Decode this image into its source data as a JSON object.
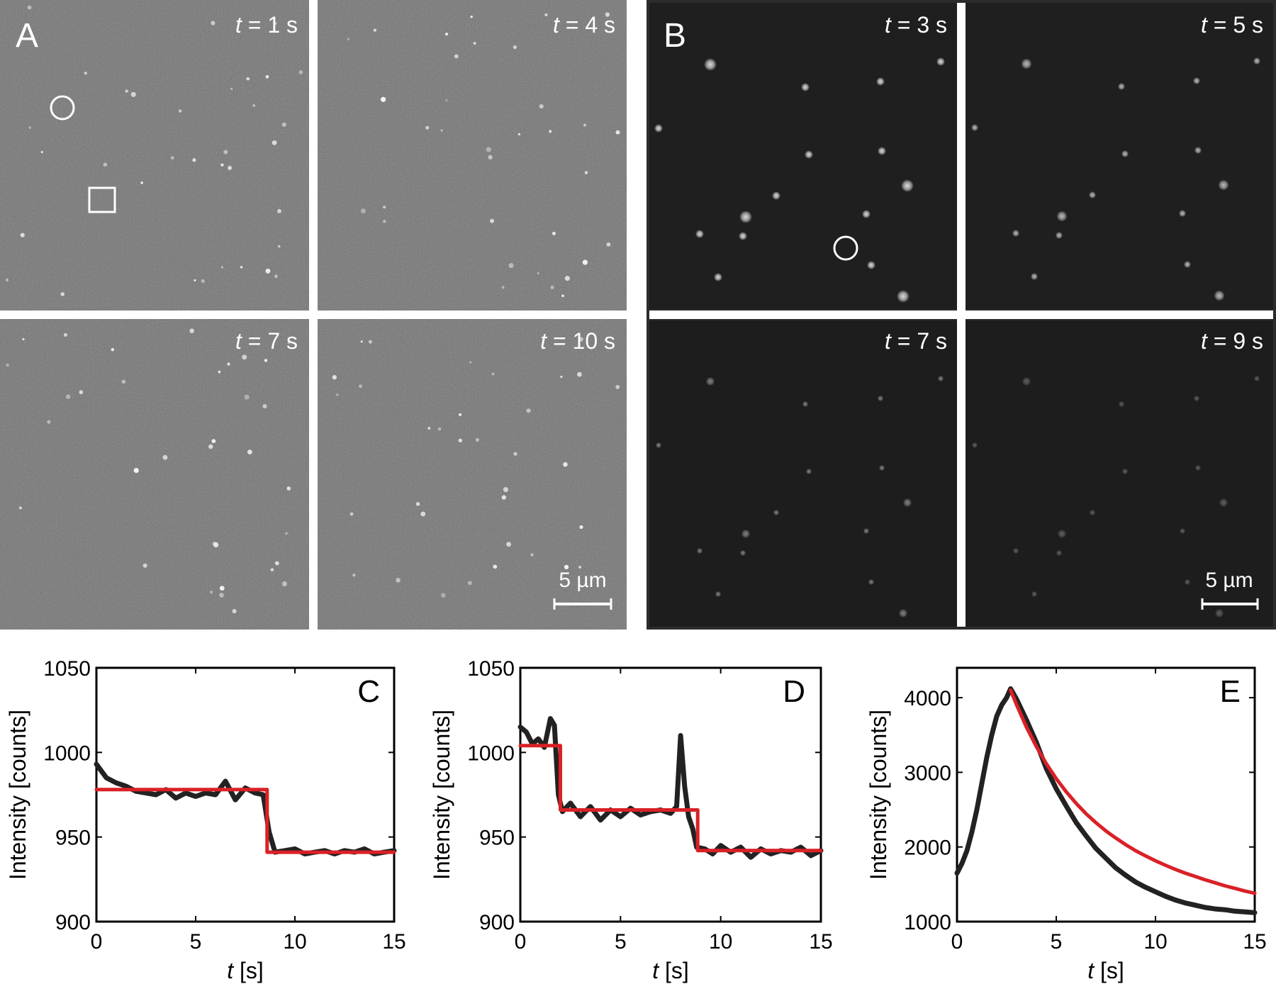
{
  "panel_a": {
    "letter": "A",
    "frames": [
      {
        "t_prefix": "t",
        "t_text": " = 1 s"
      },
      {
        "t_prefix": "t",
        "t_text": " = 4 s"
      },
      {
        "t_prefix": "t",
        "t_text": " = 7 s"
      },
      {
        "t_prefix": "t",
        "t_text": " = 10 s"
      }
    ],
    "scale_bar": "5 µm"
  },
  "panel_b": {
    "letter": "B",
    "frames": [
      {
        "t_prefix": "t",
        "t_text": " = 3 s"
      },
      {
        "t_prefix": "t",
        "t_text": " = 5 s"
      },
      {
        "t_prefix": "t",
        "t_text": " = 7 s"
      },
      {
        "t_prefix": "t",
        "t_text": " = 9 s"
      }
    ],
    "scale_bar": "5 µm"
  },
  "colors": {
    "trace": "#222222",
    "fit": "#d92127",
    "micrograph_a": "#3a3a3a",
    "micrograph_b": "#1e1e1e",
    "spot": "#ffffff"
  },
  "chart_data": [
    {
      "panel": "C",
      "type": "line",
      "ylabel": "Intensity [counts]",
      "xlabel_italic": "t",
      "xlabel_rest": " [s]",
      "xlim": [
        0,
        15
      ],
      "ylim": [
        900,
        1050
      ],
      "xticks": [
        0,
        5,
        10,
        15
      ],
      "yticks": [
        900,
        950,
        1000,
        1050
      ],
      "series": [
        {
          "role": "trace",
          "x": [
            0,
            0.5,
            1,
            1.5,
            2,
            2.5,
            3,
            3.5,
            4,
            4.5,
            5,
            5.5,
            6,
            6.5,
            7,
            7.5,
            8,
            8.4,
            8.7,
            9,
            9.5,
            10,
            10.5,
            11,
            11.5,
            12,
            12.5,
            13,
            13.5,
            14,
            14.5,
            15
          ],
          "y": [
            993,
            985,
            982,
            980,
            977,
            976,
            975,
            978,
            973,
            976,
            974,
            976,
            975,
            983,
            972,
            979,
            976,
            975,
            953,
            941,
            942,
            943,
            940,
            941,
            942,
            940,
            942,
            941,
            943,
            940,
            941,
            942
          ]
        },
        {
          "role": "fit",
          "x": [
            0,
            8.6,
            8.6,
            15
          ],
          "y": [
            978,
            978,
            941,
            941
          ]
        }
      ]
    },
    {
      "panel": "D",
      "type": "line",
      "ylabel": "Intensity [counts]",
      "xlabel_italic": "t",
      "xlabel_rest": " [s]",
      "xlim": [
        0,
        15
      ],
      "ylim": [
        900,
        1050
      ],
      "xticks": [
        0,
        5,
        10,
        15
      ],
      "yticks": [
        900,
        950,
        1000,
        1050
      ],
      "series": [
        {
          "role": "trace",
          "x": [
            0,
            0.3,
            0.6,
            0.9,
            1.2,
            1.5,
            1.7,
            1.9,
            2.1,
            2.5,
            3,
            3.5,
            4,
            4.5,
            5,
            5.5,
            6,
            6.5,
            7,
            7.5,
            7.8,
            8.0,
            8.2,
            8.4,
            8.6,
            8.8,
            9.2,
            9.6,
            10,
            10.5,
            11,
            11.5,
            12,
            12.5,
            13,
            13.5,
            14,
            14.5,
            15
          ],
          "y": [
            1015,
            1012,
            1005,
            1008,
            1003,
            1020,
            1016,
            975,
            965,
            970,
            962,
            968,
            960,
            966,
            962,
            967,
            963,
            965,
            966,
            964,
            968,
            1010,
            980,
            962,
            955,
            944,
            943,
            940,
            945,
            941,
            944,
            938,
            943,
            940,
            942,
            941,
            944,
            939,
            942
          ]
        },
        {
          "role": "fit",
          "x": [
            0,
            2,
            2,
            8.85,
            8.85,
            15
          ],
          "y": [
            1004,
            1004,
            966,
            966,
            942,
            942
          ]
        }
      ]
    },
    {
      "panel": "E",
      "type": "line",
      "ylabel": "Intensity [counts]",
      "xlabel_italic": "t",
      "xlabel_rest": " [s]",
      "xlim": [
        0,
        15
      ],
      "ylim": [
        1000,
        4400
      ],
      "xticks": [
        0,
        5,
        10,
        15
      ],
      "yticks": [
        1000,
        2000,
        3000,
        4000
      ],
      "series": [
        {
          "role": "trace",
          "x": [
            0,
            0.25,
            0.5,
            0.75,
            1,
            1.25,
            1.5,
            1.75,
            2,
            2.25,
            2.5,
            2.7,
            3,
            3.5,
            4,
            4.5,
            5,
            5.5,
            6,
            6.5,
            7,
            7.5,
            8,
            8.5,
            9,
            9.5,
            10,
            10.5,
            11,
            11.5,
            12,
            12.5,
            13,
            13.5,
            14,
            14.5,
            15
          ],
          "y": [
            1650,
            1780,
            1950,
            2200,
            2500,
            2850,
            3200,
            3500,
            3750,
            3900,
            4000,
            4120,
            3980,
            3700,
            3400,
            3050,
            2780,
            2550,
            2330,
            2150,
            1980,
            1850,
            1720,
            1620,
            1530,
            1460,
            1400,
            1340,
            1290,
            1250,
            1220,
            1190,
            1170,
            1160,
            1140,
            1130,
            1120
          ]
        },
        {
          "role": "fit",
          "x": [
            2.7,
            3,
            3.5,
            4,
            4.5,
            5,
            5.5,
            6,
            6.5,
            7,
            7.5,
            8,
            8.5,
            9,
            9.5,
            10,
            10.5,
            11,
            11.5,
            12,
            12.5,
            13,
            13.5,
            14,
            14.5,
            15
          ],
          "y": [
            4100,
            3905,
            3605,
            3345,
            3115,
            2915,
            2740,
            2585,
            2445,
            2325,
            2215,
            2120,
            2030,
            1950,
            1880,
            1815,
            1755,
            1700,
            1650,
            1605,
            1560,
            1520,
            1480,
            1445,
            1410,
            1380
          ]
        }
      ]
    }
  ]
}
